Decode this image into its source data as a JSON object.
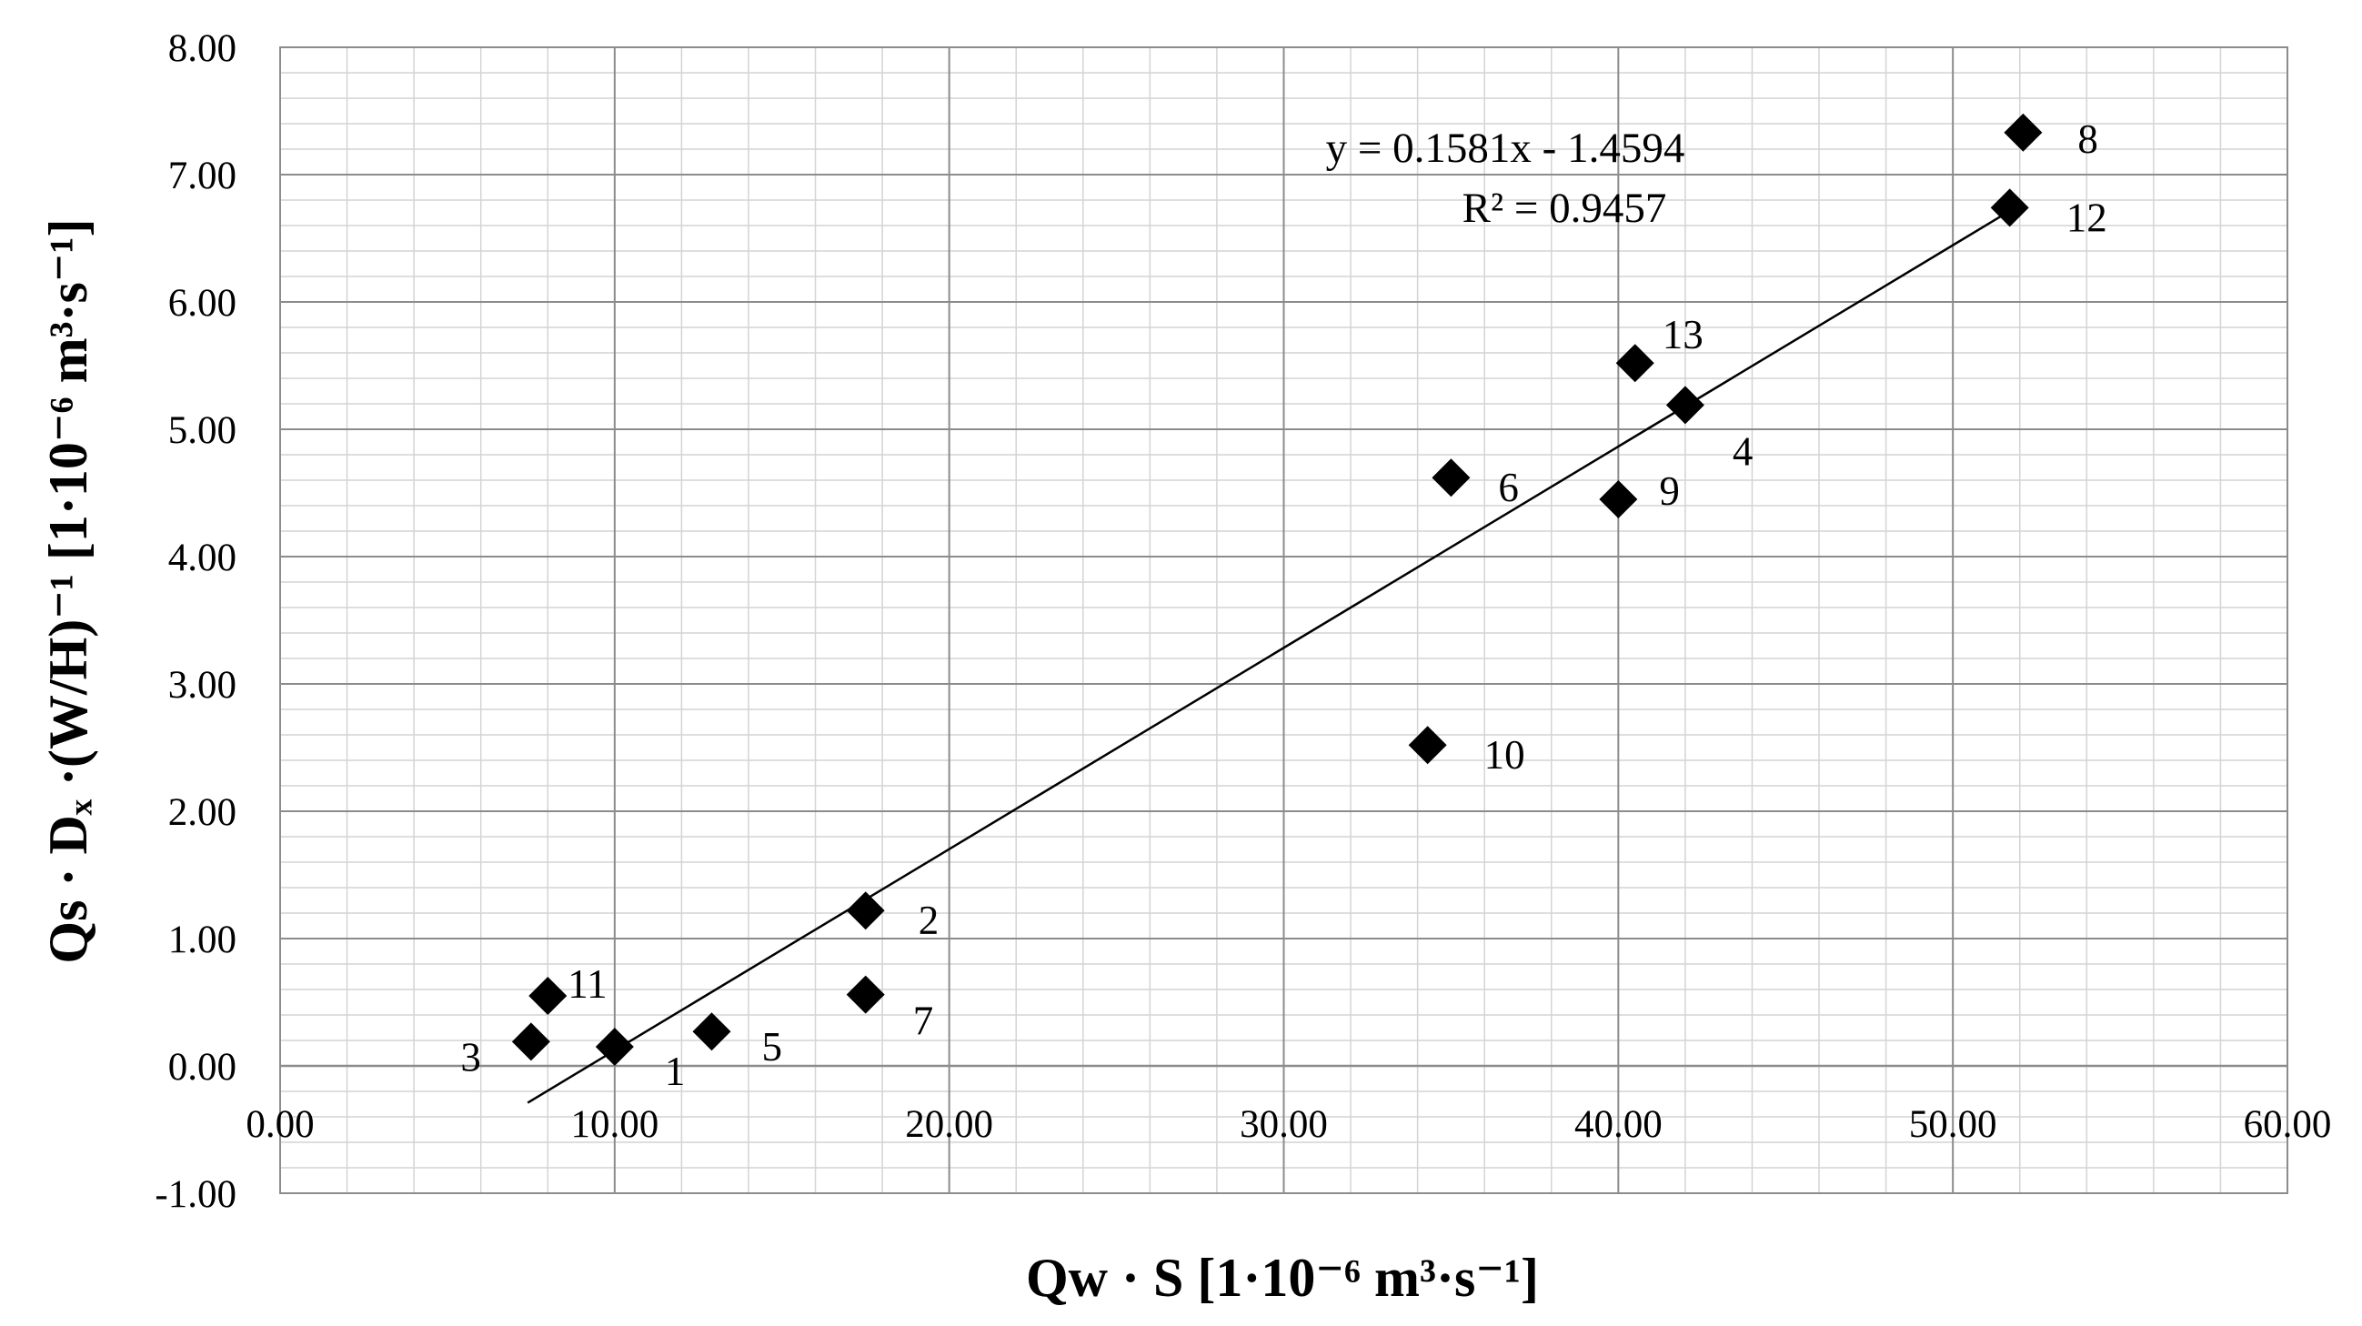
{
  "chart_data": {
    "type": "scatter",
    "title": "",
    "xlabel": "Qw · S [1·10⁻⁶ m³·s⁻¹]",
    "ylabel": "Qs · Dₓ ·(W/H)⁻¹ [1·10⁻⁶ m³·s⁻¹]",
    "xlim": [
      0,
      60
    ],
    "ylim": [
      -1,
      8
    ],
    "x_ticks": [
      "0.00",
      "10.00",
      "20.00",
      "30.00",
      "40.00",
      "50.00",
      "60.00"
    ],
    "y_ticks": [
      "-1.00",
      "0.00",
      "1.00",
      "2.00",
      "3.00",
      "4.00",
      "5.00",
      "6.00",
      "7.00",
      "8.00"
    ],
    "grid": true,
    "legend": "none",
    "marker": "diamond",
    "marker_color": "#000000",
    "points": [
      {
        "label": "1",
        "x": 10.0,
        "y": 0.15
      },
      {
        "label": "2",
        "x": 17.5,
        "y": 1.22
      },
      {
        "label": "3",
        "x": 7.5,
        "y": 0.19
      },
      {
        "label": "4",
        "x": 42.0,
        "y": 5.19
      },
      {
        "label": "5",
        "x": 12.9,
        "y": 0.27
      },
      {
        "label": "6",
        "x": 35.0,
        "y": 4.62
      },
      {
        "label": "7",
        "x": 17.5,
        "y": 0.56
      },
      {
        "label": "8",
        "x": 52.1,
        "y": 7.33
      },
      {
        "label": "9",
        "x": 40.0,
        "y": 4.45
      },
      {
        "label": "10",
        "x": 34.3,
        "y": 2.52
      },
      {
        "label": "11",
        "x": 8.0,
        "y": 0.55
      },
      {
        "label": "12",
        "x": 51.7,
        "y": 6.74
      },
      {
        "label": "13",
        "x": 40.5,
        "y": 5.52
      }
    ],
    "trendline": {
      "slope": 0.1581,
      "intercept": -1.4594,
      "x_range": [
        7.4,
        51.7
      ],
      "equation": "y = 0.1581x - 1.4594",
      "r_squared": "R² = 0.9457"
    }
  }
}
